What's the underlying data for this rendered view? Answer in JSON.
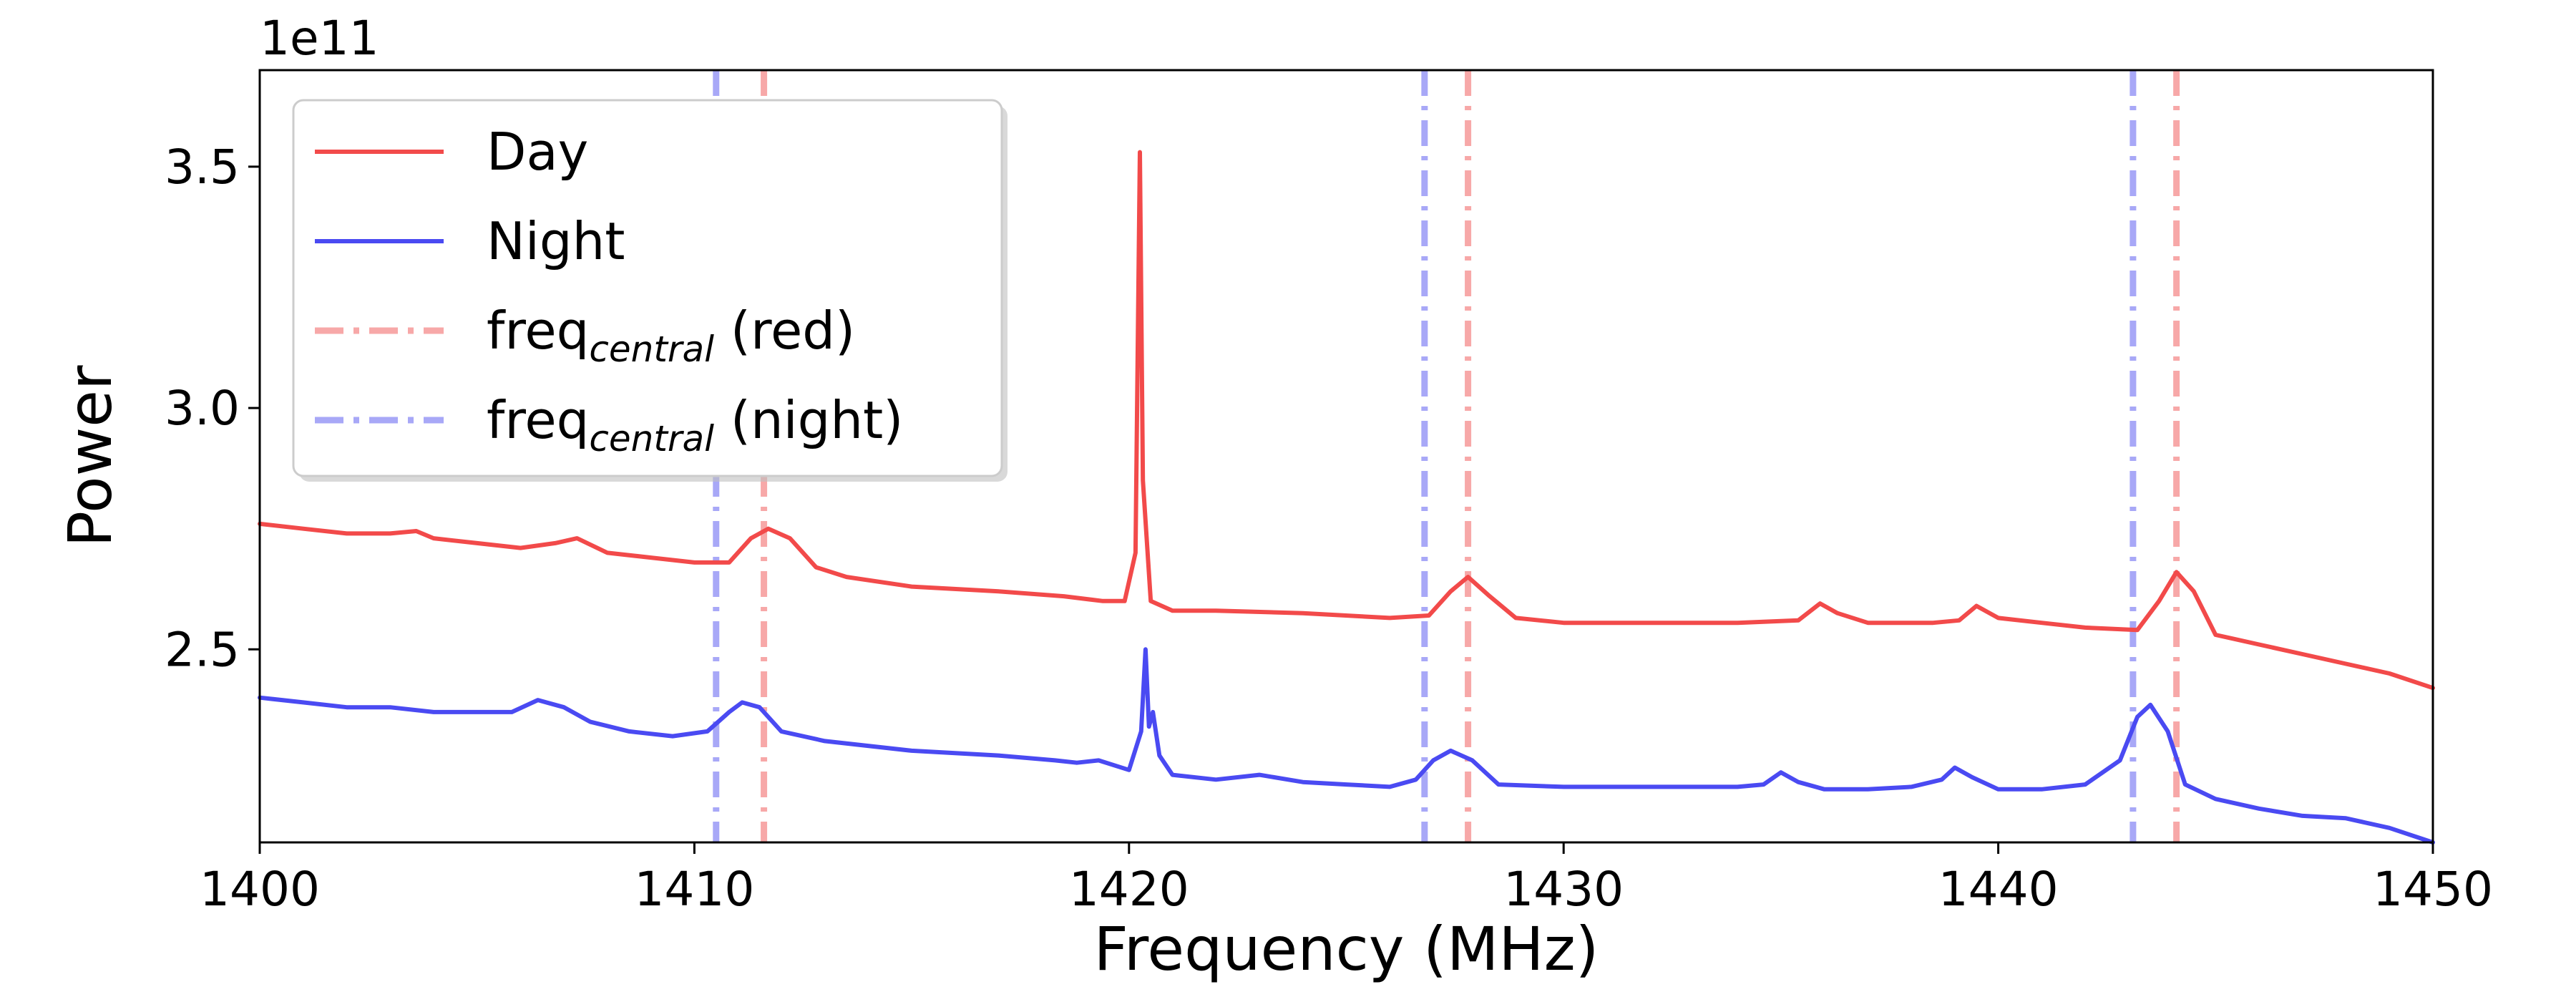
{
  "chart_data": {
    "type": "line",
    "xlabel": "Frequency (MHz)",
    "ylabel": "Power",
    "y_offset_text": "1e11",
    "xlim": [
      1400,
      1450
    ],
    "ylim": [
      2.1,
      3.7
    ],
    "y_units_scale": "1e11",
    "x_ticks": [
      1400,
      1410,
      1420,
      1430,
      1440,
      1450
    ],
    "x_tick_labels": [
      "1400",
      "1410",
      "1420",
      "1430",
      "1440",
      "1450"
    ],
    "y_ticks": [
      2.5,
      3.0,
      3.5
    ],
    "y_tick_labels": [
      "2.5",
      "3.0",
      "3.5"
    ],
    "grid": false,
    "legend_position": "top-left",
    "legend": [
      {
        "label": "Day",
        "style": "solid",
        "color": "#f24a4a"
      },
      {
        "label": "Night",
        "style": "solid",
        "color": "#4a4af2"
      },
      {
        "label_main": "freq",
        "label_sub": "central",
        "label_tail": " (red)",
        "style": "dashdot",
        "color": "#f7a8a8"
      },
      {
        "label_main": "freq",
        "label_sub": "central",
        "label_tail": " (night)",
        "style": "dashdot",
        "color": "#a8a8f7"
      }
    ],
    "vlines": [
      {
        "x": 1410.5,
        "series": "night",
        "color": "#a8a8f7"
      },
      {
        "x": 1411.6,
        "series": "red",
        "color": "#f7a8a8"
      },
      {
        "x": 1426.8,
        "series": "night",
        "color": "#a8a8f7"
      },
      {
        "x": 1427.8,
        "series": "red",
        "color": "#f7a8a8"
      },
      {
        "x": 1443.1,
        "series": "night",
        "color": "#a8a8f7"
      },
      {
        "x": 1444.1,
        "series": "red",
        "color": "#f7a8a8"
      }
    ],
    "series": [
      {
        "name": "Day",
        "color": "#f24a4a",
        "x": [
          1400,
          1401,
          1402,
          1403,
          1403.6,
          1404,
          1405,
          1406,
          1406.8,
          1407.3,
          1408,
          1409,
          1410,
          1410.8,
          1411.3,
          1411.7,
          1412.2,
          1412.8,
          1413.5,
          1415,
          1417,
          1418.5,
          1419.4,
          1419.9,
          1420.15,
          1420.25,
          1420.32,
          1420.5,
          1421,
          1422,
          1424,
          1426,
          1426.9,
          1427.4,
          1427.8,
          1428.3,
          1428.9,
          1430,
          1432,
          1434,
          1435.4,
          1435.9,
          1436.3,
          1437,
          1438.5,
          1439.1,
          1439.5,
          1440,
          1441,
          1442,
          1443.2,
          1443.7,
          1444.1,
          1444.5,
          1445,
          1446,
          1447,
          1448,
          1449,
          1450
        ],
        "values": [
          2.76,
          2.75,
          2.74,
          2.74,
          2.745,
          2.73,
          2.72,
          2.71,
          2.72,
          2.73,
          2.7,
          2.69,
          2.68,
          2.68,
          2.73,
          2.75,
          2.73,
          2.67,
          2.65,
          2.63,
          2.62,
          2.61,
          2.6,
          2.6,
          2.7,
          3.53,
          2.85,
          2.6,
          2.58,
          2.58,
          2.575,
          2.565,
          2.57,
          2.62,
          2.65,
          2.61,
          2.565,
          2.555,
          2.555,
          2.555,
          2.56,
          2.595,
          2.575,
          2.555,
          2.555,
          2.56,
          2.59,
          2.565,
          2.555,
          2.545,
          2.54,
          2.6,
          2.66,
          2.62,
          2.53,
          2.51,
          2.49,
          2.47,
          2.45,
          2.42
        ]
      },
      {
        "name": "Night",
        "color": "#4a4af2",
        "x": [
          1400,
          1401,
          1402,
          1403,
          1404,
          1405,
          1405.8,
          1406.4,
          1407,
          1407.6,
          1408.5,
          1409.5,
          1410.3,
          1410.8,
          1411.1,
          1411.5,
          1412,
          1413,
          1415,
          1417,
          1418.3,
          1418.8,
          1419.3,
          1420,
          1420.28,
          1420.38,
          1420.46,
          1420.55,
          1420.7,
          1421,
          1422,
          1423,
          1424,
          1425,
          1426,
          1426.6,
          1427,
          1427.4,
          1427.9,
          1428.5,
          1430,
          1432,
          1434,
          1434.6,
          1435,
          1435.4,
          1436,
          1437,
          1438,
          1438.7,
          1439,
          1439.4,
          1440,
          1441,
          1442,
          1442.8,
          1443.2,
          1443.5,
          1443.9,
          1444.3,
          1445,
          1446,
          1447,
          1448,
          1449,
          1450
        ],
        "values": [
          2.4,
          2.39,
          2.38,
          2.38,
          2.37,
          2.37,
          2.37,
          2.395,
          2.38,
          2.35,
          2.33,
          2.32,
          2.33,
          2.37,
          2.39,
          2.38,
          2.33,
          2.31,
          2.29,
          2.28,
          2.27,
          2.265,
          2.27,
          2.25,
          2.33,
          2.5,
          2.34,
          2.37,
          2.28,
          2.24,
          2.23,
          2.24,
          2.225,
          2.22,
          2.215,
          2.23,
          2.27,
          2.29,
          2.27,
          2.22,
          2.215,
          2.215,
          2.215,
          2.22,
          2.245,
          2.225,
          2.21,
          2.21,
          2.215,
          2.23,
          2.255,
          2.235,
          2.21,
          2.21,
          2.22,
          2.27,
          2.36,
          2.385,
          2.33,
          2.22,
          2.19,
          2.17,
          2.155,
          2.15,
          2.13,
          2.1
        ]
      }
    ]
  }
}
